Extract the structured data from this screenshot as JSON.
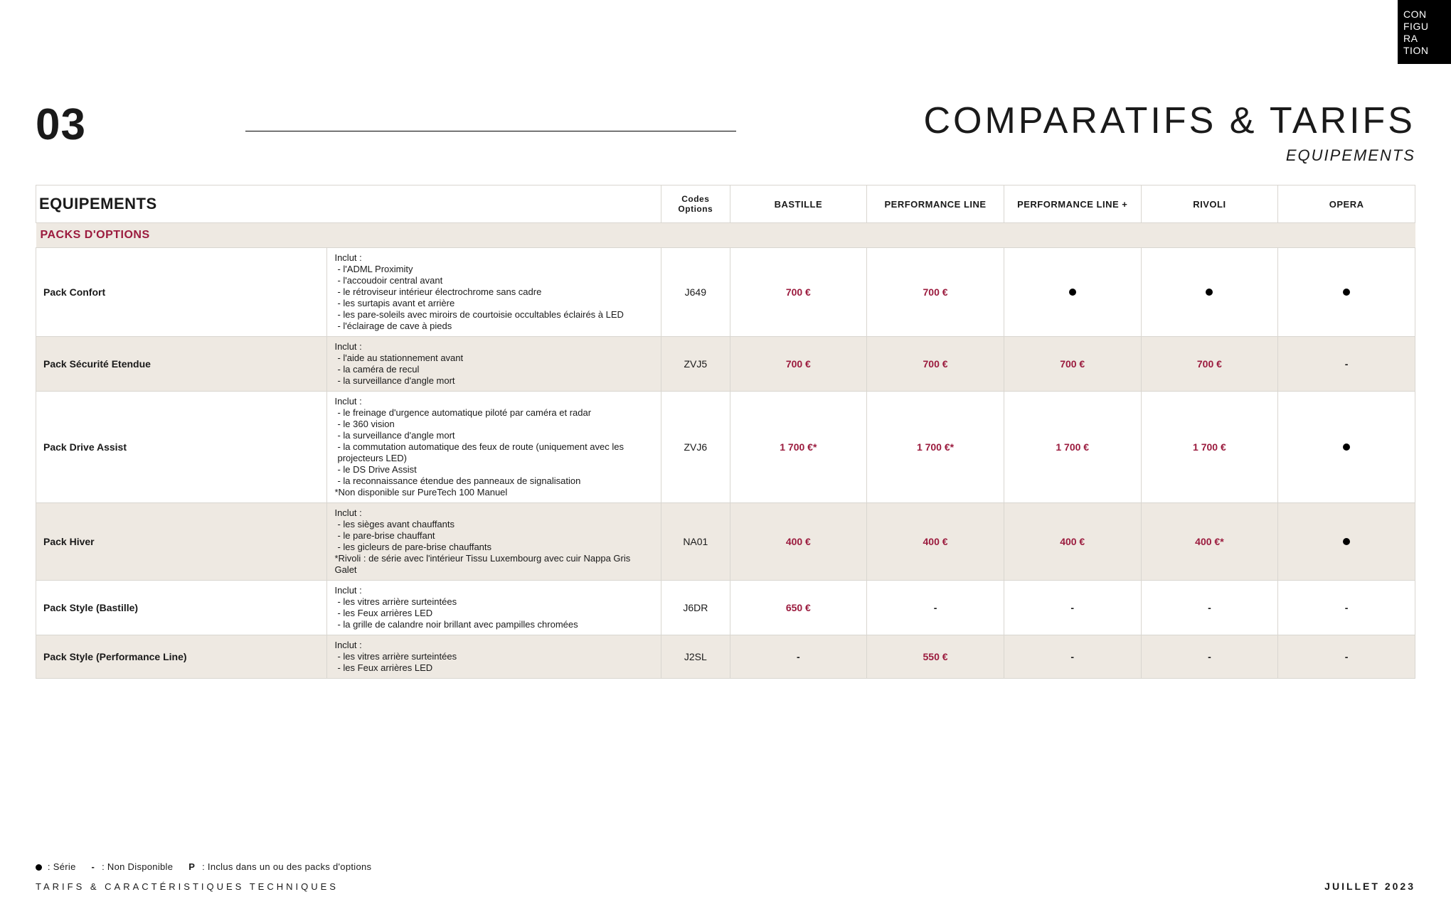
{
  "badge": {
    "l1": "CON",
    "l2": "FIGU",
    "l3": "RA",
    "l4": "TION"
  },
  "page_number": "03",
  "title": "COMPARATIFS & TARIFS",
  "subtitle": "EQUIPEMENTS",
  "colors": {
    "accent": "#9b1b3e",
    "row_shade": "#eee9e2",
    "border": "#d9d6d0",
    "text": "#1a1a1a",
    "bg": "#ffffff"
  },
  "table": {
    "header_left": "EQUIPEMENTS",
    "codes_label_l1": "Codes",
    "codes_label_l2": "Options",
    "trims": [
      "BASTILLE",
      "PERFORMANCE LINE",
      "PERFORMANCE LINE +",
      "RIVOLI",
      "OPERA"
    ],
    "section_title": "PACKS D'OPTIONS",
    "rows": [
      {
        "name": "Pack Confort",
        "lead": "Inclut :",
        "items": [
          "l'ADML Proximity",
          "l'accoudoir central avant",
          "le rétroviseur intérieur électrochrome sans cadre",
          "les surtapis avant et arrière",
          "les pare-soleils avec miroirs de courtoisie occultables éclairés à LED",
          "l'éclairage de cave à pieds"
        ],
        "notes": [],
        "code": "J649",
        "cells": [
          "700 €",
          "700 €",
          "●",
          "●",
          "●"
        ],
        "shade": false
      },
      {
        "name": "Pack Sécurité Etendue",
        "lead": "Inclut :",
        "items": [
          "l'aide au stationnement avant",
          "la caméra de recul",
          "la surveillance d'angle mort"
        ],
        "notes": [],
        "code": "ZVJ5",
        "cells": [
          "700 €",
          "700 €",
          "700 €",
          "700 €",
          "-"
        ],
        "shade": true
      },
      {
        "name": "Pack Drive Assist",
        "lead": "Inclut :",
        "items": [
          "le freinage d'urgence automatique piloté par caméra et radar",
          "le 360 vision",
          "la surveillance d'angle mort",
          "la commutation automatique des feux de route (uniquement avec les projecteurs LED)",
          "le DS Drive Assist",
          "la reconnaissance étendue des panneaux de signalisation"
        ],
        "notes": [
          "*Non disponible sur PureTech 100 Manuel"
        ],
        "code": "ZVJ6",
        "cells": [
          "1 700 €*",
          "1 700 €*",
          "1 700 €",
          "1 700 €",
          "●"
        ],
        "shade": false
      },
      {
        "name": "Pack Hiver",
        "lead": "Inclut :",
        "items": [
          "les sièges avant chauffants",
          "le pare-brise chauffant",
          "les gicleurs de pare-brise chauffants"
        ],
        "notes": [
          "*Rivoli : de série avec l'intérieur Tissu Luxembourg avec cuir Nappa Gris Galet"
        ],
        "code": "NA01",
        "cells": [
          "400 €",
          "400 €",
          "400 €",
          "400 €*",
          "●"
        ],
        "shade": true
      },
      {
        "name": "Pack Style (Bastille)",
        "lead": "Inclut :",
        "items": [
          "les vitres arrière surteintées",
          "les Feux arrières LED",
          "la grille de calandre noir brillant avec pampilles chromées"
        ],
        "notes": [],
        "code": "J6DR",
        "cells": [
          "650 €",
          "-",
          "-",
          "-",
          "-"
        ],
        "shade": false
      },
      {
        "name": "Pack Style (Performance Line)",
        "lead": "Inclut :",
        "items": [
          "les vitres arrière surteintées",
          "les Feux arrières LED"
        ],
        "notes": [],
        "code": "J2SL",
        "cells": [
          "-",
          "550 €",
          "-",
          "-",
          "-"
        ],
        "shade": true
      }
    ]
  },
  "legend": {
    "serie": ": Série",
    "nd_symbol": "-",
    "nd": ": Non Disponible",
    "p_symbol": "P",
    "p": ": Inclus dans un ou des packs d'options"
  },
  "footer_left": "TARIFS & CARACTÉRISTIQUES TECHNIQUES",
  "footer_right": "JUILLET 2023"
}
